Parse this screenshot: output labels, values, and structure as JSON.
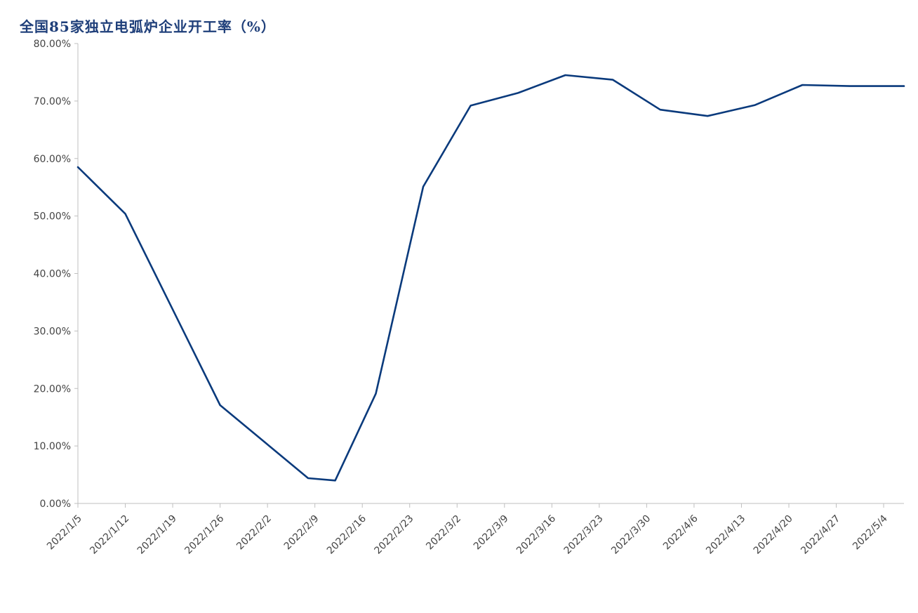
{
  "chart_data": {
    "type": "line",
    "title": "全国85家独立电弧炉企业开工率（%）",
    "xlabel": "",
    "ylabel": "",
    "ylim": [
      0,
      80
    ],
    "ytick_values": [
      0,
      10,
      20,
      30,
      40,
      50,
      60,
      70,
      80
    ],
    "ytick_labels": [
      "0.00%",
      "10.00%",
      "20.00%",
      "30.00%",
      "40.00%",
      "50.00%",
      "60.00%",
      "70.00%",
      "80.00%"
    ],
    "x_start": "2022/1/5",
    "x_end": "2022/5/7",
    "xtick_labels": [
      "2022/1/5",
      "2022/1/12",
      "2022/1/19",
      "2022/1/26",
      "2022/2/2",
      "2022/2/9",
      "2022/2/16",
      "2022/2/23",
      "2022/3/2",
      "2022/3/9",
      "2022/3/16",
      "2022/3/23",
      "2022/3/30",
      "2022/4/6",
      "2022/4/13",
      "2022/4/20",
      "2022/4/27",
      "2022/5/4"
    ],
    "grid": false,
    "legend": "none",
    "line_color": "#0a3a7c",
    "series": [
      {
        "x": [
          "2022/1/5",
          "2022/1/12",
          "2022/1/26",
          "2022/2/8",
          "2022/2/12",
          "2022/2/18",
          "2022/2/25",
          "2022/3/4",
          "2022/3/11",
          "2022/3/18",
          "2022/3/25",
          "2022/4/1",
          "2022/4/8",
          "2022/4/15",
          "2022/4/22",
          "2022/4/29",
          "2022/5/7"
        ],
        "values": [
          58.5,
          50.4,
          17.1,
          4.4,
          4.0,
          19.1,
          55.1,
          69.2,
          71.4,
          74.5,
          73.7,
          68.5,
          67.4,
          69.3,
          72.8,
          72.6,
          72.6
        ]
      }
    ]
  }
}
